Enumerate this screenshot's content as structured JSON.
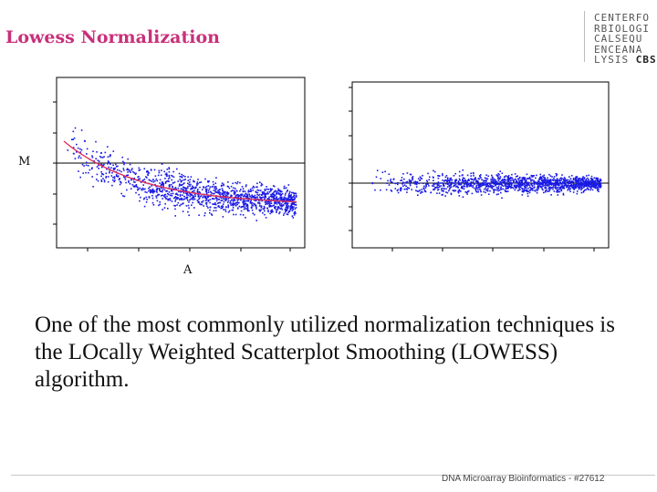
{
  "slide": {
    "title": "Lowess Normalization",
    "body": "One of the most commonly utilized normalization techniques is the LOcally Weighted Scatterplot Smoothing (LOWESS) algorithm.",
    "footer": "DNA Microarray Bioinformatics - #27612"
  },
  "logo": {
    "lines": [
      "CENTERFO",
      "RBIOLOGI",
      "CALSEQU",
      "ENCEANA",
      "LYSIS"
    ],
    "bold_word": "CBS"
  },
  "colors": {
    "title": "#c8307a",
    "points": "#1a1ae6",
    "loess_curve": "#e0305a"
  },
  "chart_data": [
    {
      "type": "scatter",
      "xlabel": "A",
      "ylabel": "M",
      "reference_line_y": 0,
      "x_range": [
        6,
        17
      ],
      "y_range": [
        -3,
        3
      ],
      "points": "dense MA-plot cloud decreasing from upper-left to lower-right",
      "loess_curve": true
    },
    {
      "type": "scatter",
      "xlabel": "",
      "ylabel": "",
      "reference_line_y": 0,
      "x_range": [
        7,
        17
      ],
      "y_range": [
        -3,
        4
      ],
      "points": "dense MA-plot cloud centered on M = 0 after normalization",
      "loess_curve": false
    }
  ]
}
